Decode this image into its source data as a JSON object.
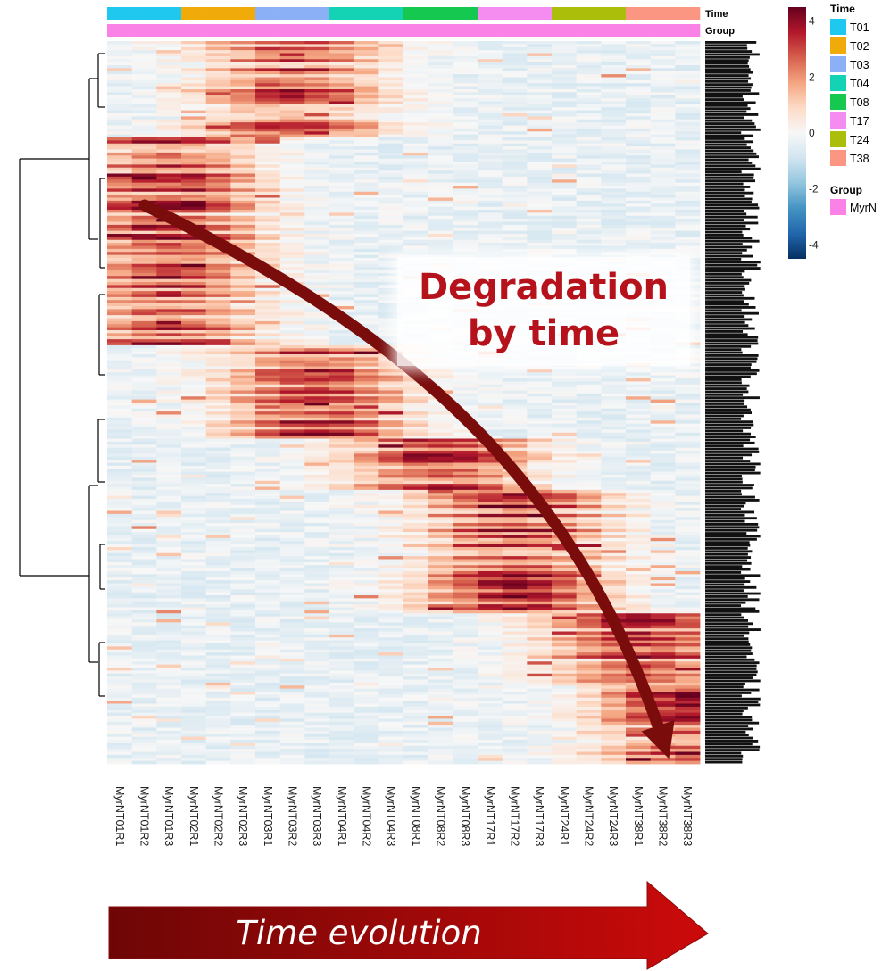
{
  "chart_data": {
    "type": "heatmap",
    "title": "",
    "columns": [
      "MyrNT01R1",
      "MyrNT01R2",
      "MyrNT01R3",
      "MyrNT02R1",
      "MyrNT02R2",
      "MyrNT02R3",
      "MyrNT03R1",
      "MyrNT03R2",
      "MyrNT03R3",
      "MyrNT04R1",
      "MyrNT04R2",
      "MyrNT04R3",
      "MyrNT08R1",
      "MyrNT08R2",
      "MyrNT08R3",
      "MyrNT17R1",
      "MyrNT17R2",
      "MyrNT17R3",
      "MyrNT24R1",
      "MyrNT24R2",
      "MyrNT24R3",
      "MyrNT38R1",
      "MyrNT38R2",
      "MyrNT38R3"
    ],
    "column_time": [
      "T01",
      "T01",
      "T01",
      "T02",
      "T02",
      "T02",
      "T03",
      "T03",
      "T03",
      "T04",
      "T04",
      "T04",
      "T08",
      "T08",
      "T08",
      "T17",
      "T17",
      "T17",
      "T24",
      "T24",
      "T24",
      "T38",
      "T38",
      "T38"
    ],
    "column_group": [
      "MyrN",
      "MyrN",
      "MyrN",
      "MyrN",
      "MyrN",
      "MyrN",
      "MyrN",
      "MyrN",
      "MyrN",
      "MyrN",
      "MyrN",
      "MyrN",
      "MyrN",
      "MyrN",
      "MyrN",
      "MyrN",
      "MyrN",
      "MyrN",
      "MyrN",
      "MyrN",
      "MyrN",
      "MyrN",
      "MyrN",
      "MyrN"
    ],
    "annotation_tracks": [
      "Time",
      "Group"
    ],
    "color_scale": {
      "range": [
        -4.5,
        4.5
      ],
      "ticks": [
        4,
        2,
        0,
        -2,
        -4
      ],
      "tick_labels": [
        "4",
        "2",
        "0",
        "-2",
        "-4"
      ],
      "colors": [
        "#053061",
        "#2166ac",
        "#4393c3",
        "#92c5de",
        "#d1e5f0",
        "#f7f7f7",
        "#fddbc7",
        "#f4a582",
        "#d6604d",
        "#b2182b",
        "#67001f"
      ]
    },
    "legend": {
      "time_title": "Time",
      "time": [
        {
          "label": "T01",
          "color": "#1ec8ee"
        },
        {
          "label": "T02",
          "color": "#f0aa0a"
        },
        {
          "label": "T03",
          "color": "#8cb0f5"
        },
        {
          "label": "T04",
          "color": "#14d2b4"
        },
        {
          "label": "T08",
          "color": "#14c850"
        },
        {
          "label": "T17",
          "color": "#f58cf0"
        },
        {
          "label": "T24",
          "color": "#aabe0a"
        },
        {
          "label": "T38",
          "color": "#fa9682"
        }
      ],
      "group_title": "Group",
      "group": [
        {
          "label": "MyrN",
          "color": "#fa82e6"
        }
      ]
    },
    "row_count": 240,
    "row_labels": [],
    "pattern": "Early time points (T01-T04) show high relative abundance for the upper block of features; high values shift to later time points (T08, T17, T24, T38) progressively for lower blocks of features."
  },
  "annotations": {
    "overlay_text_line1": "Degradation",
    "overlay_text_line2": "by time",
    "bottom_arrow_label": "Time evolution"
  },
  "colors": {
    "annotation_text": "#b5121b",
    "arrow_dark": "#7a0c0c",
    "arrow_fill_start": "#6e0606",
    "arrow_fill_end": "#cc0a0a"
  }
}
